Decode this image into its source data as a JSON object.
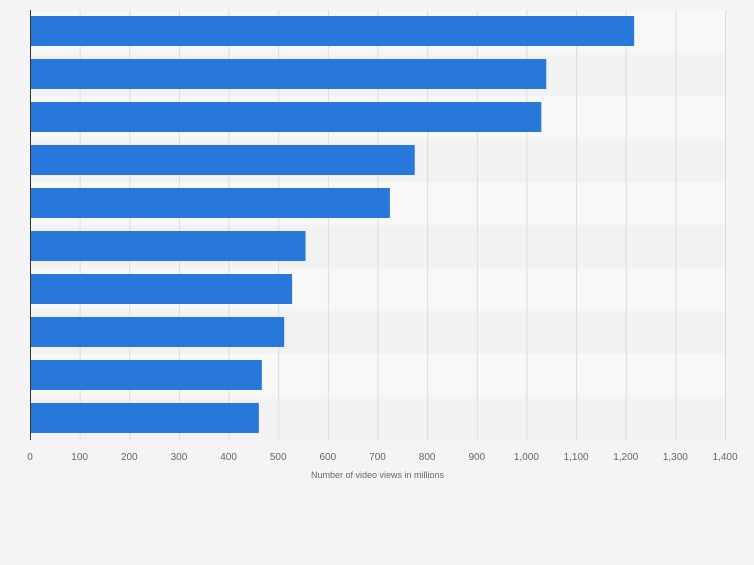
{
  "chart_data": {
    "type": "bar",
    "orientation": "horizontal",
    "categories": [
      "",
      "",
      "",
      "",
      "",
      "",
      "",
      "",
      "",
      ""
    ],
    "values": [
      1217,
      1040,
      1030,
      775,
      725,
      555,
      528,
      512,
      467,
      461
    ],
    "title": "",
    "xlabel": "Number of video views in millions",
    "ylabel": "",
    "xlim": [
      0,
      1400
    ],
    "ticks": [
      0,
      100,
      200,
      300,
      400,
      500,
      600,
      700,
      800,
      900,
      1000,
      1100,
      1200,
      1300,
      1400
    ],
    "tick_labels": [
      "0",
      "100",
      "200",
      "300",
      "400",
      "500",
      "600",
      "700",
      "800",
      "900",
      "1,000",
      "1,100",
      "1,200",
      "1,300",
      "1,400"
    ],
    "grid": true,
    "colors": {
      "bar": "#2878db",
      "band_light": "#f8f8f8",
      "band_dark": "#f2f2f2",
      "grid": "#dcdcdc",
      "axis": "#333333",
      "text": "#666666"
    }
  }
}
